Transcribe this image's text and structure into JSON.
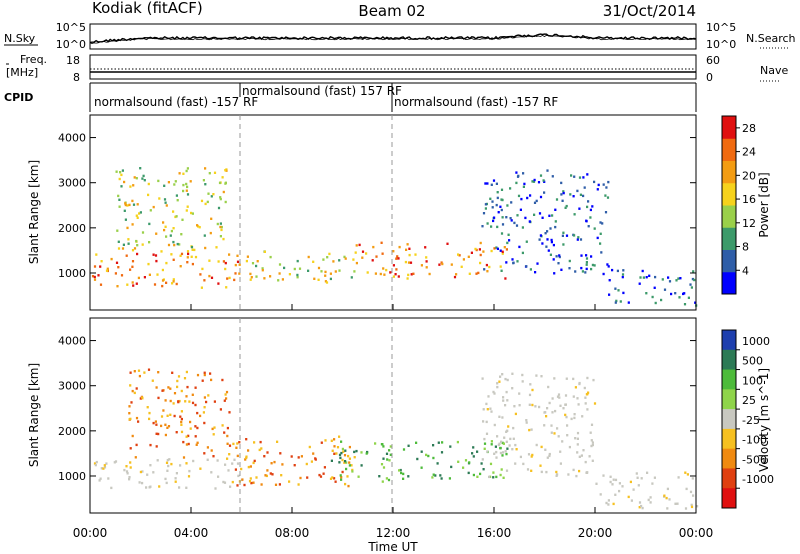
{
  "header": {
    "station": "Kodiak (fitACF)",
    "beam": "Beam 02",
    "date": "31/Oct/2014"
  },
  "noise_panel": {
    "left_label": "N.Sky",
    "right_label": "N.Search",
    "left_ticks": [
      "10^5",
      "10^0"
    ],
    "right_ticks": [
      "10^5",
      "10^0"
    ]
  },
  "freq_panel": {
    "left_label_1": "Freq.",
    "left_label_2": "[MHz]",
    "left_ticks": [
      "18",
      "8"
    ],
    "right_label": "Nave",
    "right_ticks": [
      "60",
      "0"
    ]
  },
  "cpid": {
    "label": "CPID",
    "segments": [
      {
        "text": "normalsound (fast) -157 RF",
        "start_ut": 0,
        "end_ut": 6
      },
      {
        "text": "normalsound (fast) 157 RF",
        "start_ut": 6,
        "end_ut": 12
      },
      {
        "text": "normalsound (fast) -157 RF",
        "start_ut": 12,
        "end_ut": 24
      }
    ]
  },
  "x_axis": {
    "label": "Time UT",
    "ticks": [
      "00:00",
      "04:00",
      "08:00",
      "12:00",
      "16:00",
      "20:00",
      "00:00"
    ]
  },
  "chart_data": [
    {
      "type": "heatmap",
      "title": "",
      "xlabel": "Time UT",
      "ylabel": "Slant Range [km]",
      "xlim": [
        0,
        24
      ],
      "ylim": [
        180,
        4500
      ],
      "yticks": [
        "1000",
        "2000",
        "3000",
        "4000"
      ],
      "colorbar": {
        "label": "Power [dB]",
        "ticks": [
          "4",
          "8",
          "12",
          "16",
          "20",
          "24",
          "28"
        ],
        "range": [
          0,
          30
        ],
        "colors": [
          "#0000ff",
          "#2f5ea8",
          "#3c9a6a",
          "#9ad04a",
          "#f6d21c",
          "#f39c12",
          "#f06a10",
          "#e01010"
        ]
      },
      "scatter_regions": [
        {
          "t0": 0.0,
          "t1": 6.0,
          "r0": 700,
          "r1": 1500,
          "level": "high"
        },
        {
          "t0": 1.0,
          "t1": 5.5,
          "r0": 1500,
          "r1": 3400,
          "level": "mid"
        },
        {
          "t0": 6.0,
          "t1": 10.5,
          "r0": 800,
          "r1": 1500,
          "level": "mid"
        },
        {
          "t0": 10.5,
          "t1": 16.5,
          "r0": 900,
          "r1": 1700,
          "level": "high"
        },
        {
          "t0": 15.5,
          "t1": 20.5,
          "r0": 1000,
          "r1": 3300,
          "level": "low"
        },
        {
          "t0": 20.5,
          "t1": 24.0,
          "r0": 300,
          "r1": 1100,
          "level": "low"
        }
      ]
    },
    {
      "type": "heatmap",
      "title": "",
      "xlabel": "Time UT",
      "ylabel": "Slant Range [km]",
      "xlim": [
        0,
        24
      ],
      "ylim": [
        180,
        4500
      ],
      "yticks": [
        "1000",
        "2000",
        "3000",
        "4000"
      ],
      "colorbar": {
        "label": "Velocity [m s^-1]",
        "ticks": [
          "1000",
          "500",
          "100",
          "25",
          "-25",
          "-100",
          "-500",
          "-1000"
        ],
        "colors": [
          "#1e3fae",
          "#2c7a55",
          "#4dbb3a",
          "#8fd44a",
          "#c8c8c0",
          "#f6c020",
          "#f08a10",
          "#e04010",
          "#e01010"
        ]
      },
      "scatter_regions": [
        {
          "t0": 0.0,
          "t1": 6.0,
          "r0": 700,
          "r1": 1400,
          "level": "ground"
        },
        {
          "t0": 1.5,
          "t1": 5.5,
          "r0": 1400,
          "r1": 3400,
          "level": "negative"
        },
        {
          "t0": 5.5,
          "t1": 10.5,
          "r0": 800,
          "r1": 1900,
          "level": "negative"
        },
        {
          "t0": 9.5,
          "t1": 16.5,
          "r0": 900,
          "r1": 1800,
          "level": "positive"
        },
        {
          "t0": 15.5,
          "t1": 20.0,
          "r0": 1000,
          "r1": 3300,
          "level": "ground"
        },
        {
          "t0": 20.0,
          "t1": 24.0,
          "r0": 300,
          "r1": 1100,
          "level": "ground"
        }
      ]
    }
  ]
}
